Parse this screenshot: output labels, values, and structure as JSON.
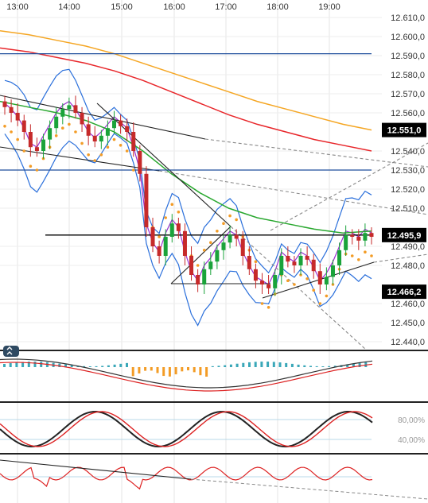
{
  "chart_data": {
    "type": "candlestick",
    "instrument_timeframe": "intraday",
    "x_labels": [
      "13:00",
      "14:00",
      "15:00",
      "16:00",
      "17:00",
      "18:00",
      "19:00"
    ],
    "y_ticks": [
      "12.610,0",
      "12.600,0",
      "12.590,0",
      "12.580,0",
      "12.570,0",
      "12.560,0",
      "12.540,0",
      "12.530,0",
      "12.520,0",
      "12.510,0",
      "12.490,0",
      "12.480,0",
      "12.460,0",
      "12.450,0",
      "12.440,0"
    ],
    "ylim": [
      12435,
      12617
    ],
    "price_badges": [
      {
        "label": "12.551,0",
        "value": 12551.0,
        "color": "#000000"
      },
      {
        "label": "12.495,9",
        "value": 12495.9,
        "color": "#000000"
      },
      {
        "label": "12.466,2",
        "value": 12466.2,
        "color": "#000000"
      }
    ],
    "horizontal_levels": [
      {
        "value": 12591,
        "color": "#1f4e9c"
      },
      {
        "value": 12530,
        "color": "#1f4e9c"
      },
      {
        "value": 12495.9,
        "color": "#000000"
      }
    ],
    "close_series": [
      12563,
      12560,
      12556,
      12550,
      12542,
      12540,
      12546,
      12552,
      12558,
      12562,
      12564,
      12560,
      12554,
      12548,
      12545,
      12548,
      12552,
      12556,
      12553,
      12550,
      12540,
      12528,
      12500,
      12490,
      12485,
      12495,
      12502,
      12498,
      12485,
      12475,
      12470,
      12478,
      12482,
      12488,
      12492,
      12496,
      12494,
      12485,
      12478,
      12472,
      12470,
      12468,
      12475,
      12485,
      12482,
      12480,
      12485,
      12483,
      12477,
      12470,
      12474,
      12480,
      12488,
      12496,
      12495,
      12493,
      12497,
      12495
    ],
    "moving_averages": [
      {
        "name": "MA orange",
        "color": "#f5a623",
        "values": [
          12603,
          12601,
          12598,
          12595,
          12591,
          12586,
          12581,
          12576,
          12571,
          12566,
          12562,
          12558,
          12554,
          12551
        ]
      },
      {
        "name": "MA red",
        "color": "#e8262a",
        "values": [
          12594,
          12592,
          12589,
          12586,
          12582,
          12577,
          12571,
          12565,
          12559,
          12554,
          12550,
          12546,
          12543,
          12540
        ]
      },
      {
        "name": "MA green",
        "color": "#2aa830",
        "values": [
          12566,
          12563,
          12560,
          12556,
          12550,
          12540,
          12528,
          12518,
          12510,
          12505,
          12502,
          12499,
          12497,
          12498
        ]
      }
    ],
    "indicator_panels": [
      {
        "name": "MACD",
        "ref_lines": []
      },
      {
        "name": "Stochastic",
        "ref_lines": [
          "80,00%",
          "40,00%"
        ]
      },
      {
        "name": "Momentum",
        "ref_lines": []
      }
    ],
    "grid": true
  }
}
